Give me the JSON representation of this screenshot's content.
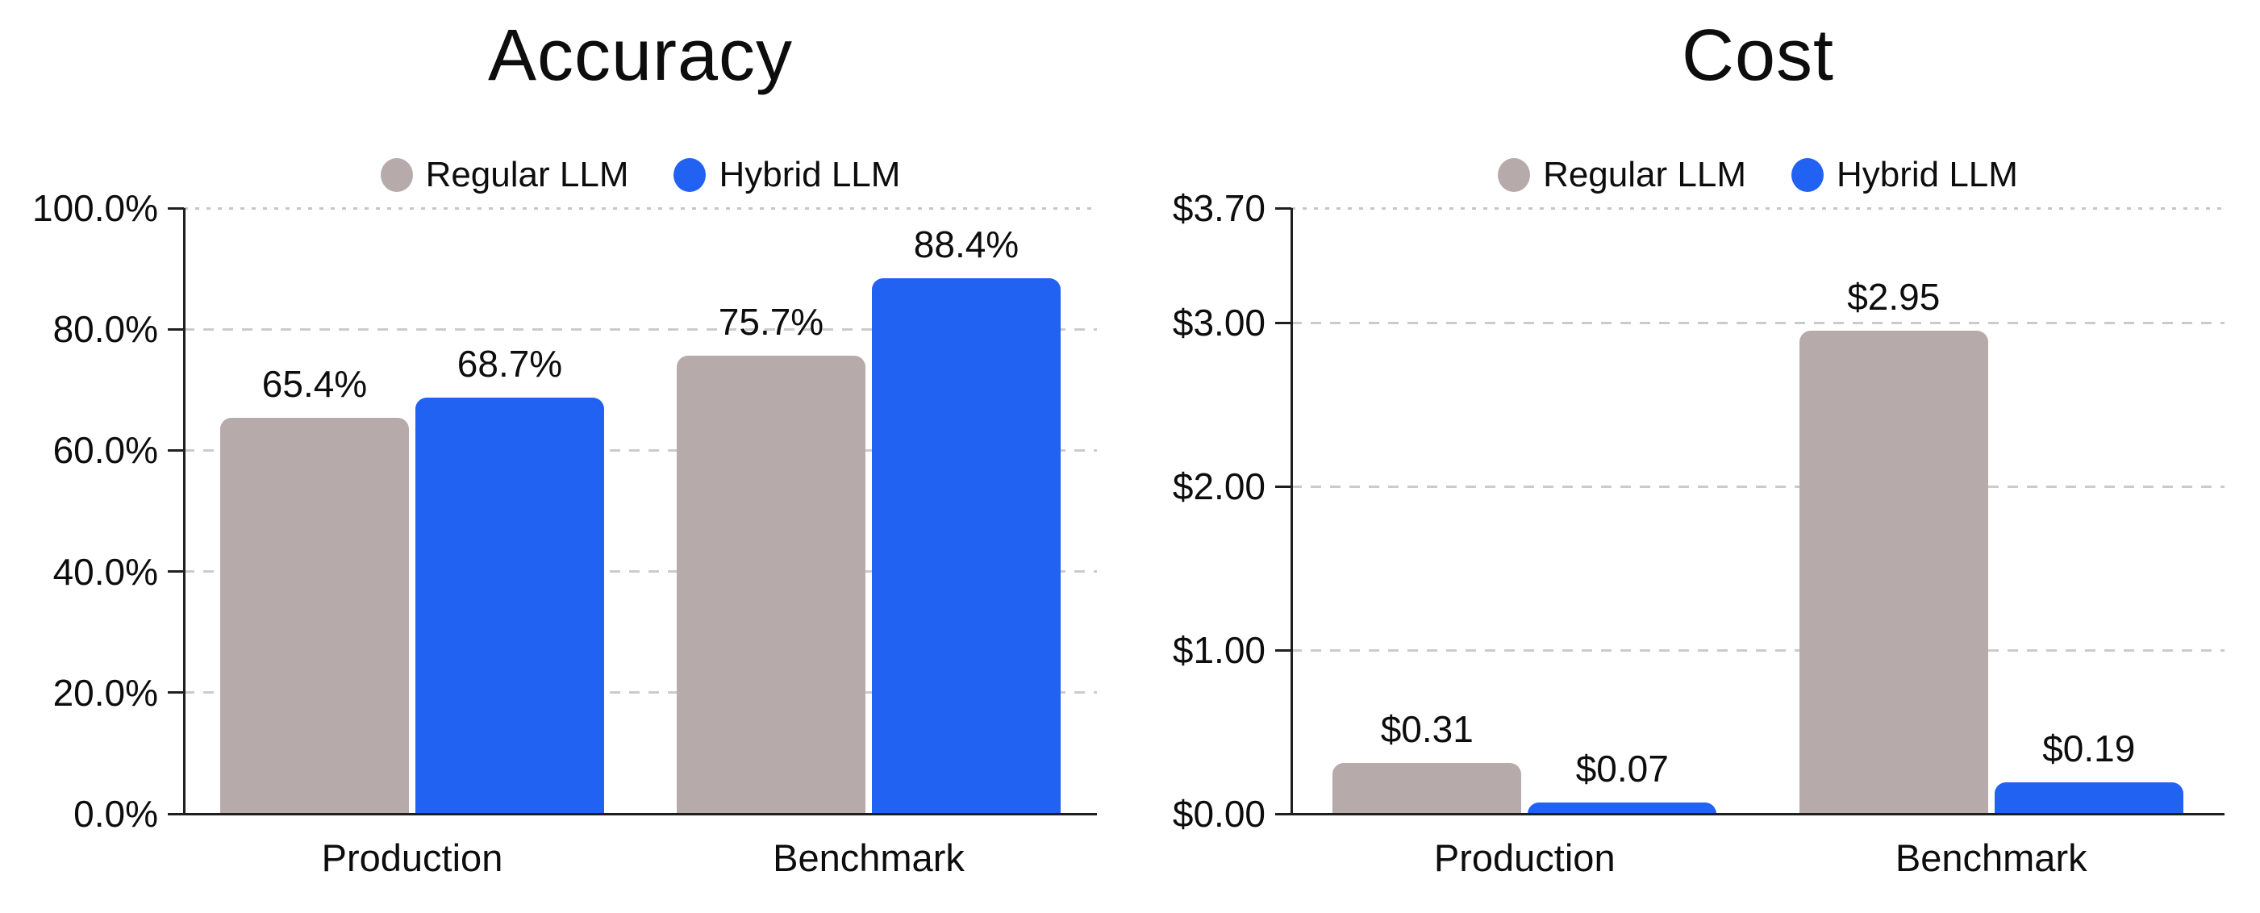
{
  "colors": {
    "regular_llm": "#b7aaaa",
    "hybrid_llm": "#2262f2",
    "gridline": "#cbcbcb",
    "axis": "#1f1f1f",
    "text": "#0d0d0d",
    "background": "#ffffff"
  },
  "chart_data": [
    {
      "type": "bar",
      "title": "Accuracy",
      "categories": [
        "Production",
        "Benchmark"
      ],
      "series": [
        {
          "name": "Regular LLM",
          "color": "#b7aaaa",
          "values": [
            65.4,
            75.7
          ],
          "labels": [
            "65.4%",
            "75.7%"
          ]
        },
        {
          "name": "Hybrid LLM",
          "color": "#2262f2",
          "values": [
            68.7,
            88.4
          ],
          "labels": [
            "68.7%",
            "88.4%"
          ]
        }
      ],
      "ylim": [
        0,
        100
      ],
      "y_ticks": [
        {
          "value": 100,
          "label": "100.0%"
        },
        {
          "value": 80,
          "label": "80.0%"
        },
        {
          "value": 60,
          "label": "60.0%"
        },
        {
          "value": 40,
          "label": "40.0%"
        },
        {
          "value": 20,
          "label": "20.0%"
        },
        {
          "value": 0,
          "label": "0.0%"
        }
      ],
      "grid": "horizontal-dashed, top line dotted",
      "legend_position": "top-center"
    },
    {
      "type": "bar",
      "title": "Cost",
      "categories": [
        "Production",
        "Benchmark"
      ],
      "series": [
        {
          "name": "Regular LLM",
          "color": "#b7aaaa",
          "values": [
            0.31,
            2.95
          ],
          "labels": [
            "$0.31",
            "$2.95"
          ]
        },
        {
          "name": "Hybrid LLM",
          "color": "#2262f2",
          "values": [
            0.07,
            0.19
          ],
          "labels": [
            "$0.07",
            "$0.19"
          ]
        }
      ],
      "ylim": [
        0,
        3.7
      ],
      "y_ticks": [
        {
          "value": 3.7,
          "label": "$3.70"
        },
        {
          "value": 3.0,
          "label": "$3.00"
        },
        {
          "value": 2.0,
          "label": "$2.00"
        },
        {
          "value": 1.0,
          "label": "$1.00"
        },
        {
          "value": 0,
          "label": "$0.00"
        }
      ],
      "grid": "horizontal-dashed, top line dotted",
      "legend_position": "top-center"
    }
  ]
}
